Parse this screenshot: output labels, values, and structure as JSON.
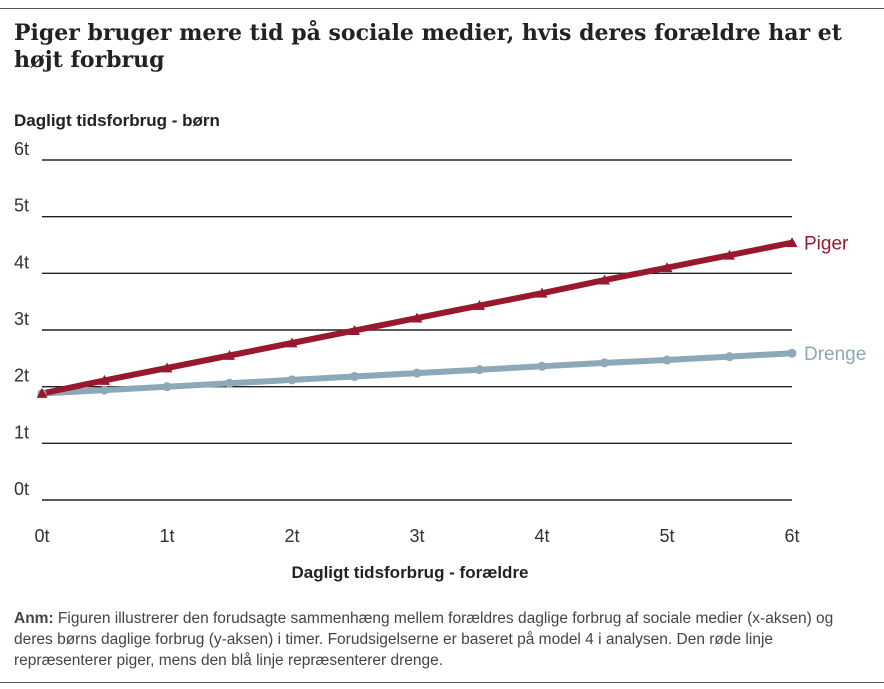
{
  "title": "Piger bruger mere tid på sociale medier, hvis deres forældre har et højt forbrug",
  "note": {
    "label": "Anm:",
    "text": "Figuren illustrerer den forudsagte sammenhæng mellem forældres daglige forbrug af sociale medier (x-aksen) og deres børns daglige forbrug (y-aksen) i timer. Forudsigelserne er baseret på model 4 i analysen. Den røde linje repræsenterer piger, mens den blå linje repræsenterer drenge."
  },
  "chart_data": {
    "type": "line",
    "title": "Piger bruger mere tid på sociale medier, hvis deres forældre har et højt forbrug",
    "xlabel": "Dagligt tidsforbrug - forældre",
    "ylabel": "Dagligt tidsforbrug - børn",
    "xlim": [
      0,
      6
    ],
    "ylim": [
      0,
      6
    ],
    "x_ticks": [
      0,
      1,
      2,
      3,
      4,
      5,
      6
    ],
    "x_tick_labels": [
      "0t",
      "1t",
      "2t",
      "3t",
      "4t",
      "5t",
      "6t"
    ],
    "y_ticks": [
      0,
      1,
      2,
      3,
      4,
      5,
      6
    ],
    "y_tick_labels": [
      "0t",
      "1t",
      "2t",
      "3t",
      "4t",
      "5t",
      "6t"
    ],
    "grid": "horizontal",
    "legend": "direct labels at line ends",
    "x": [
      0,
      0.5,
      1,
      1.5,
      2,
      2.5,
      3,
      3.5,
      4,
      4.5,
      5,
      5.5,
      6
    ],
    "series": [
      {
        "name": "Piger",
        "color": "#98192d",
        "marker": "triangle",
        "values": [
          1.88,
          2.11,
          2.33,
          2.55,
          2.77,
          2.99,
          3.21,
          3.43,
          3.65,
          3.88,
          4.1,
          4.32,
          4.54
        ]
      },
      {
        "name": "Drenge",
        "color": "#8da8b8",
        "marker": "circle",
        "values": [
          1.88,
          1.94,
          2.0,
          2.06,
          2.12,
          2.18,
          2.24,
          2.3,
          2.36,
          2.42,
          2.47,
          2.53,
          2.59
        ]
      }
    ]
  }
}
